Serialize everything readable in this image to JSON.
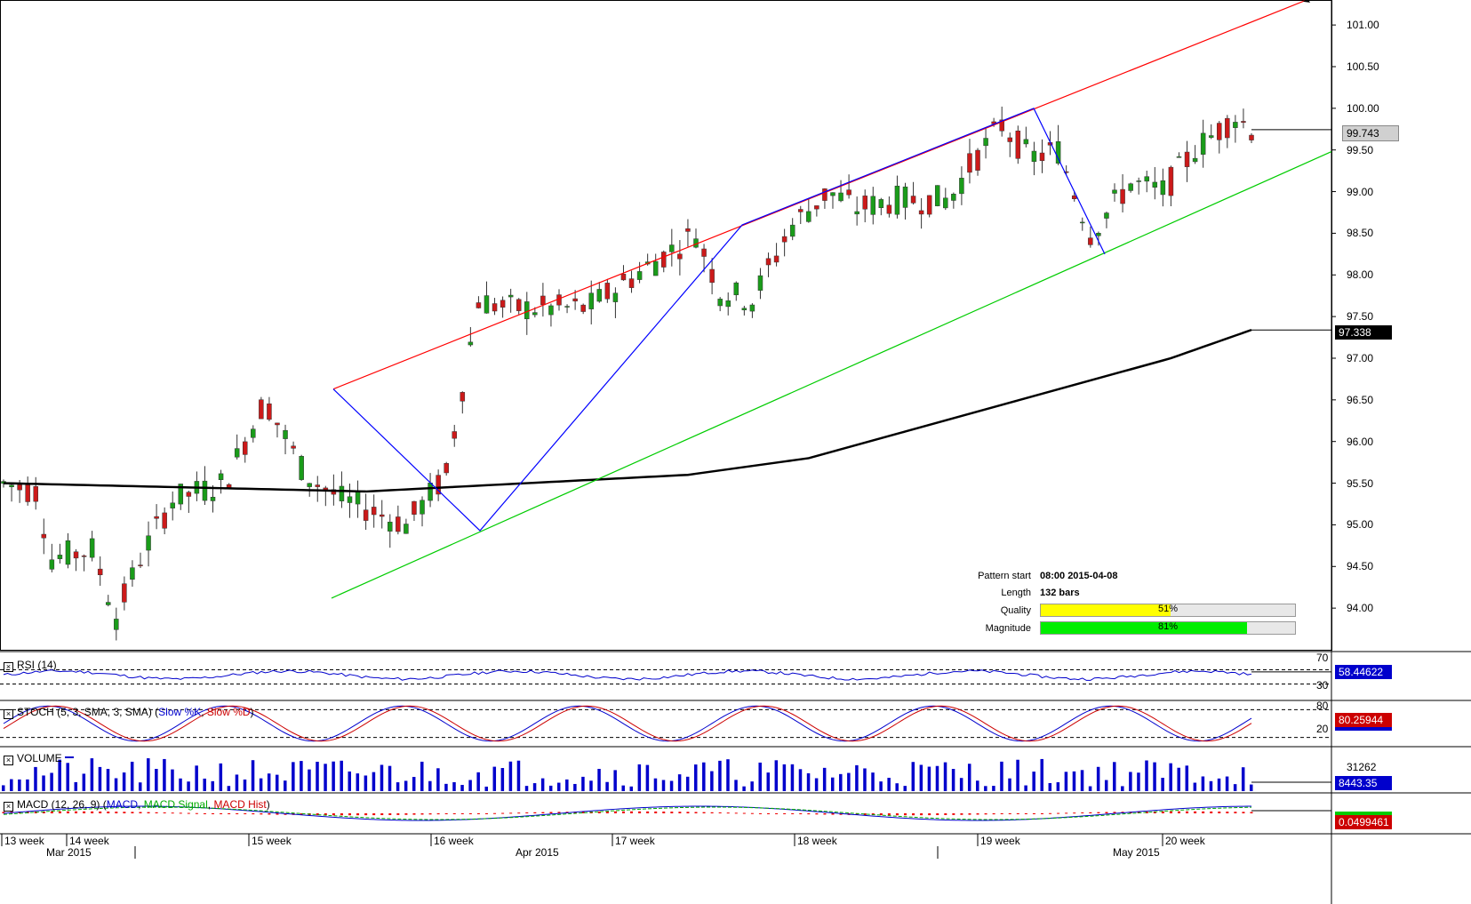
{
  "chart_data": {
    "type": "candlestick",
    "symbol_panel": {
      "current_price_label": "99.743",
      "ma_price_label": "97.338",
      "ylim": [
        93.5,
        101.3
      ],
      "y_ticks": [
        "101.00",
        "100.50",
        "100.00",
        "99.50",
        "99.00",
        "98.50",
        "98.00",
        "97.50",
        "97.00",
        "96.50",
        "96.00",
        "95.50",
        "95.00",
        "94.50",
        "94.00"
      ]
    },
    "pattern": {
      "start_label": "Pattern start",
      "start_value": "08:00 2015-04-08",
      "length_label": "Length",
      "length_value": "132 bars",
      "quality_label": "Quality",
      "quality_text": "51%",
      "quality": 0.51,
      "magnitude_label": "Magnitude",
      "magnitude_text": "81%",
      "magnitude": 0.81
    },
    "rsi": {
      "label": "RSI (14)",
      "value": "58.44622",
      "levels": [
        "70",
        "30"
      ]
    },
    "stoch": {
      "label_prefix": "STOCH (5, 3, SMA, 3, SMA)",
      "k_label": "Slow %K",
      "d_label": "Slow %D",
      "value": "80.25944",
      "levels": [
        "80",
        "20"
      ]
    },
    "volume": {
      "label": "VOLUME",
      "value": "8443.35",
      "scale": "31262"
    },
    "macd": {
      "label_prefix": "MACD (12, 26, 9)",
      "macd_label": "MACD",
      "signal_label": "MACD Signal",
      "hist_label": "MACD Hist",
      "value": "0.0499461"
    },
    "time_axis": {
      "weeks": [
        "13 week",
        "14 week",
        "15 week",
        "16 week",
        "17 week",
        "18 week",
        "19 week",
        "20 week"
      ],
      "months": [
        "Mar 2015",
        "Apr 2015",
        "May 2015"
      ]
    }
  },
  "colors": {
    "bull": "#1a9c1a",
    "bear": "#cc1a1a",
    "resistance": "#ff0000",
    "support": "#00cc00",
    "zigzag": "#0000ff",
    "ma": "#000000",
    "volume": "#0000cc",
    "quality_fill": "#ffff00",
    "magnitude_fill": "#00ee00"
  }
}
